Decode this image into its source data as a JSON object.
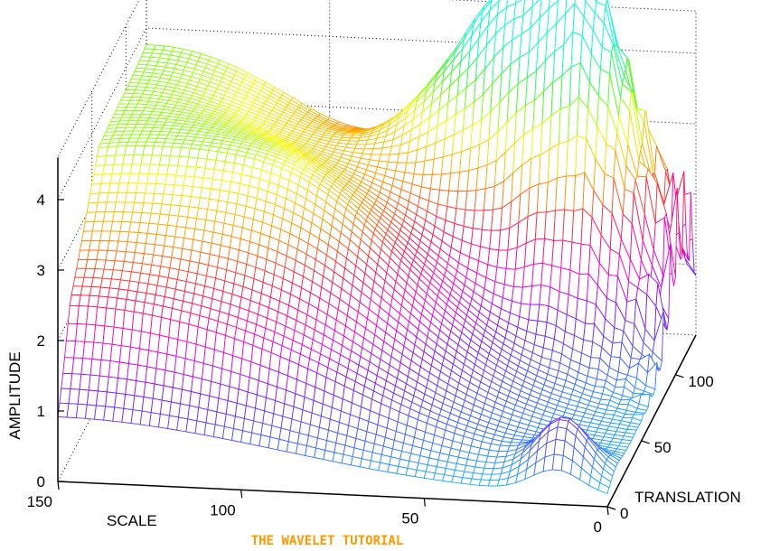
{
  "chart_data": {
    "type": "surface",
    "title": "",
    "zlabel": "AMPLITUDE",
    "xlabel": "SCALE",
    "ylabel": "TRANSLATION",
    "zticks": [
      "0",
      "1",
      "2",
      "3",
      "4"
    ],
    "zlim": [
      0,
      4.6
    ],
    "scale_ticks": [
      "150",
      "100",
      "50",
      "0"
    ],
    "scale_lim": [
      0,
      150
    ],
    "translation_ticks": [
      "0",
      "50",
      "100"
    ],
    "translation_lim": [
      0,
      130
    ],
    "grid": "on",
    "box": "on",
    "colormap": "hsv",
    "color_ramp": [
      "#00e5ff",
      "#3a6cff",
      "#7a1cff",
      "#ff00d0",
      "#ff1a4a",
      "#ff9a00",
      "#f5ff00",
      "#38ff1a",
      "#00ffd0"
    ],
    "features": [
      {
        "description": "ridge peaking near translation 115 at scale 40",
        "peak_amplitude": 4.4
      },
      {
        "description": "plateau at scale 150 along all translations",
        "amplitude": 3.6
      },
      {
        "description": "oscillations at small scale",
        "amplitude_max": 2.6
      }
    ]
  },
  "watermark": {
    "text": "THE WAVELET TUTORIAL",
    "color": "#ff9900"
  }
}
